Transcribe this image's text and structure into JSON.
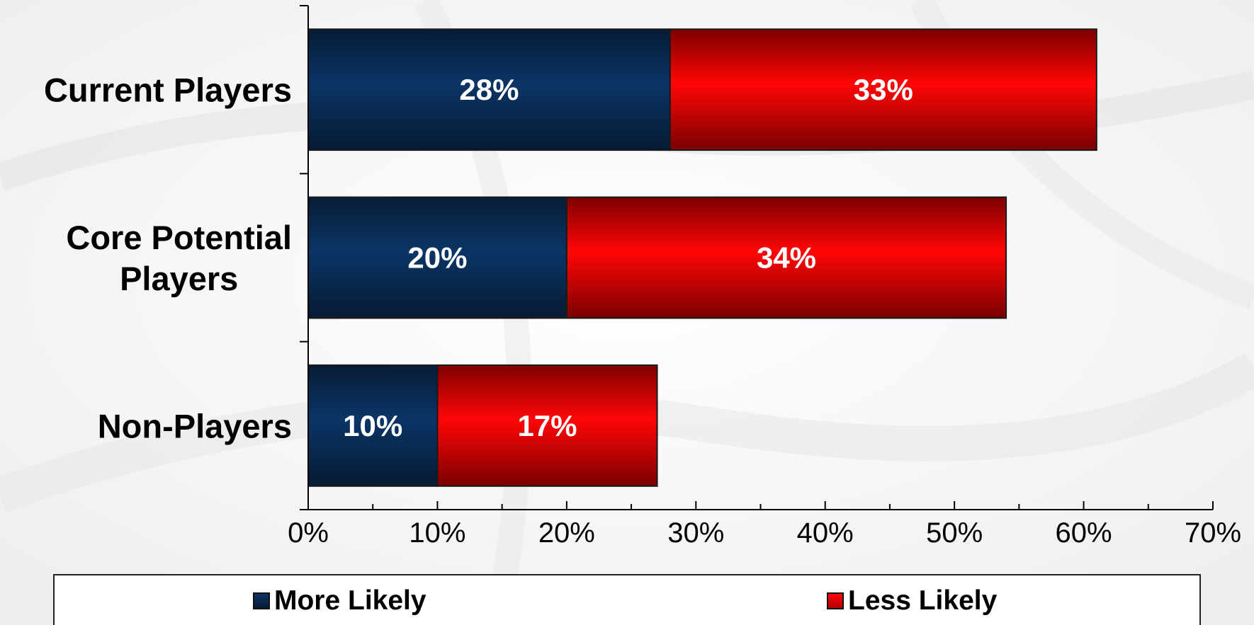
{
  "chart_data": {
    "type": "bar",
    "orientation": "horizontal",
    "stacked": true,
    "categories": [
      "Current Players",
      "Core Potential Players",
      "Non-Players"
    ],
    "category_lines": [
      [
        "Current Players"
      ],
      [
        "Core Potential",
        "Players"
      ],
      [
        "Non-Players"
      ]
    ],
    "series": [
      {
        "name": "More Likely",
        "values": [
          28,
          20,
          10
        ],
        "labels": [
          "28%",
          "20%",
          "10%"
        ],
        "color": "#0a2f5c"
      },
      {
        "name": "Less Likely",
        "values": [
          33,
          34,
          17
        ],
        "labels": [
          "33%",
          "34%",
          "17%"
        ],
        "color": "#e60000"
      }
    ],
    "xlim": [
      0,
      70
    ],
    "xticks": [
      "0%",
      "10%",
      "20%",
      "30%",
      "40%",
      "50%",
      "60%",
      "70%"
    ],
    "grid": false,
    "legend_position": "bottom"
  },
  "legend": {
    "more_likely": "More Likely",
    "less_likely": "Less Likely"
  }
}
